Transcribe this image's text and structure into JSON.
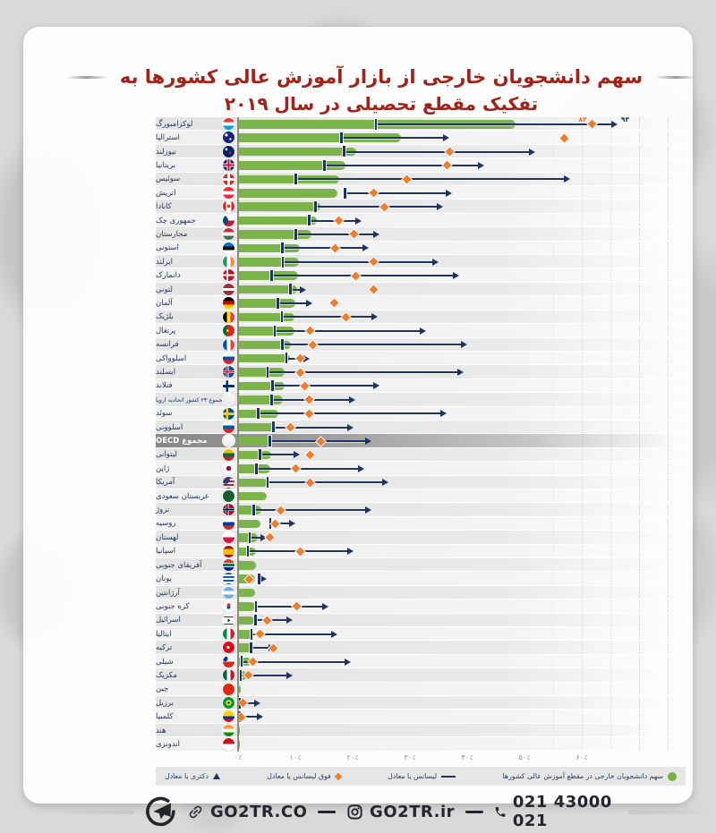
{
  "title": {
    "line1": "سهم دانشجویان خارجی از بازار آموزش عالی کشورها به",
    "line2": "تفکیک مقطع تحصیلی در سال ۲۰۱۹"
  },
  "colors": {
    "title_red": "#a02218",
    "bar_green": "#7ab44b",
    "marker_navy": "#203462",
    "marker_orange": "#ee7d2e",
    "highlight_row_gray": "#9d9d9d"
  },
  "axis": {
    "tick_labels": [
      "۰٪",
      "۱۰٪",
      "۲۰٪",
      "۳۰٪",
      "۴۰٪",
      "۵۰٪",
      "۶۰٪"
    ],
    "tick_values": [
      0,
      10,
      20,
      30,
      40,
      50,
      60
    ],
    "unit": "%"
  },
  "legend": {
    "total": "سهم دانشجویان خارجی در مقطع آموزش عالی کشورها",
    "bachelor": "لیسانس یا معادل",
    "master": "فوق لیسانس یا معادل",
    "doctoral": "دکتری یا معادل"
  },
  "footer": {
    "website": "GO2TR.CO",
    "instagram": "GO2TR.ir",
    "phone": "021 43000 021"
  },
  "chart_data": {
    "type": "bar",
    "orientation": "horizontal",
    "unit": "percent of students who are international, 2019",
    "xlim": [
      0,
      60
    ],
    "series_meta": {
      "bar": "total tertiary share (green bar)",
      "bachelor": "bachelor or equivalent (navy tick, start of line)",
      "master": "master or equivalent (orange diamond)",
      "doctoral": "doctoral or equivalent (navy arrow, end of line)"
    },
    "countries": [
      {
        "name": "لوکزامبورگ",
        "total": 48.5,
        "bachelor": 24,
        "master": 82,
        "doctoral": 93,
        "master_label": "۸۲",
        "doctoral_label": "۹۳",
        "flag": "linear-gradient(180deg,#ef3340 33%,#ffffff 33% 66%,#00a2e1 66%)"
      },
      {
        "name": "استرالیا",
        "total": 28.5,
        "bachelor": 18,
        "master": 57,
        "doctoral": 36,
        "flag": "radial-gradient(circle at 30% 30%,#ffffff 12%,rgba(255,255,255,0) 14%),radial-gradient(circle at 65% 65%,#ffffff 9%,rgba(255,255,255,0) 11%),linear-gradient(#1b237e,#1b237e)"
      },
      {
        "name": "نیوزلند",
        "total": 20.6,
        "bachelor": 18.5,
        "master": 37,
        "doctoral": 51,
        "flag": "radial-gradient(circle at 62% 60%,#cc142b 12%,rgba(204,20,43,0) 14%),radial-gradient(circle at 30% 30%,#ffffff 10%,rgba(255,255,255,0) 12%),linear-gradient(#012169,#012169)"
      },
      {
        "name": "بریتانیا",
        "total": 18.8,
        "bachelor": 15,
        "master": 36.5,
        "doctoral": 42,
        "flag": "linear-gradient(0deg,rgba(0,0,0,0) 44%,#c8102e 44% 56%,rgba(0,0,0,0) 56%),linear-gradient(90deg,rgba(0,0,0,0) 44%,#c8102e 44% 56%,rgba(0,0,0,0) 56%),linear-gradient(0deg,rgba(0,0,0,0) 34%,#ffffff 34% 66%,rgba(0,0,0,0) 66%),linear-gradient(90deg,rgba(0,0,0,0) 34%,#ffffff 34% 66%,rgba(0,0,0,0) 66%),linear-gradient(#012169,#012169)"
      },
      {
        "name": "سوئیس",
        "total": 17.6,
        "bachelor": 10,
        "master": 29.5,
        "doctoral": 57,
        "flag": "linear-gradient(0deg,rgba(0,0,0,0) 40%,#ffffff 40% 60%,rgba(0,0,0,0) 60%),linear-gradient(90deg,rgba(0,0,0,0) 40%,#ffffff 40% 60%,rgba(0,0,0,0) 60%),linear-gradient(#da291c,#da291c)"
      },
      {
        "name": "اتریش",
        "total": 17.3,
        "bachelor": 18.6,
        "master": 23.7,
        "doctoral": 36.4,
        "flag": "linear-gradient(180deg,#ed2939 33%,#ffffff 33% 66%,#ed2939 66%)"
      },
      {
        "name": "کانادا",
        "total": 14.3,
        "bachelor": 13.5,
        "master": 25.5,
        "doctoral": 34.8,
        "flag": "radial-gradient(circle at 50% 50%,#d52b1e 18%,rgba(213,43,30,0) 20%),linear-gradient(90deg,#d52b1e 28%,#ffffff 28% 72%,#d52b1e 72%)"
      },
      {
        "name": "جمهوری چک",
        "total": 13.8,
        "bachelor": 12.4,
        "master": 17.6,
        "doctoral": 20.7,
        "flag": "radial-gradient(circle at 0% 50%,#11457e 40%,rgba(17,69,126,0) 42%),linear-gradient(180deg,#ffffff 50%,#d7141a 50%)"
      },
      {
        "name": "مجارستان",
        "total": 12.8,
        "bachelor": 10,
        "master": 20.3,
        "doctoral": 23.8,
        "flag": "linear-gradient(180deg,#cd2a3e 33%,#ffffff 33% 66%,#436f4d 66%)"
      },
      {
        "name": "استونی",
        "total": 10.8,
        "bachelor": 7.7,
        "master": 16.9,
        "doctoral": 21.8,
        "flag": "linear-gradient(180deg,#0072ce 33%,#000000 33% 66%,#ffffff 66%)"
      },
      {
        "name": "ایرلند",
        "total": 10.7,
        "bachelor": 7.8,
        "master": 23.6,
        "doctoral": 34.1,
        "flag": "linear-gradient(90deg,#169b62 33%,#ffffff 33% 66%,#ff883e 66%)"
      },
      {
        "name": "دانمارک",
        "total": 10.5,
        "bachelor": 5.8,
        "master": 20.6,
        "doctoral": 37.6,
        "flag": "linear-gradient(0deg,rgba(0,0,0,0) 42%,#ffffff 42% 58%,rgba(0,0,0,0) 58%),linear-gradient(90deg,rgba(0,0,0,0) 30%,#ffffff 30% 46%,rgba(0,0,0,0) 46%),linear-gradient(#c8102e,#c8102e)"
      },
      {
        "name": "لتونی",
        "total": 10.3,
        "bachelor": 9.1,
        "master": 23.6,
        "doctoral": 10.9,
        "flag": "linear-gradient(180deg,#9e3039 38%,#ffffff 38% 62%,#9e3039 62%)"
      },
      {
        "name": "آلمان",
        "total": 10.0,
        "bachelor": 6.9,
        "master": 16.8,
        "doctoral": 12.1,
        "flag": "linear-gradient(180deg,#000000 33%,#dd0000 33% 66%,#ffce00 66%)"
      },
      {
        "name": "بلژیک",
        "total": 9.9,
        "bachelor": 7.6,
        "master": 18.9,
        "doctoral": 23.5,
        "flag": "linear-gradient(90deg,#000000 33%,#fdda24 33% 66%,#ef3340 66%)"
      },
      {
        "name": "پرتغال",
        "total": 9.8,
        "bachelor": 6.4,
        "master": 12.6,
        "doctoral": 31.8,
        "flag": "radial-gradient(circle at 40% 50%,#ffe900 12%,rgba(255,233,0,0) 14%),linear-gradient(90deg,#046a38 40%,#da291c 40%)"
      },
      {
        "name": "فرانسه",
        "total": 9.2,
        "bachelor": 7.7,
        "master": 13.0,
        "doctoral": 39.0,
        "flag": "linear-gradient(90deg,#0055a4 33%,#ffffff 33% 66%,#ef4135 66%)"
      },
      {
        "name": "اسلوواکی",
        "total": 9.0,
        "bachelor": 8.4,
        "master": 10.8,
        "doctoral": 11.5,
        "flag": "linear-gradient(180deg,#ffffff 33%,#0b4ea2 33% 66%,#ee1c25 66%)"
      },
      {
        "name": "ایسلند",
        "total": 8.2,
        "bachelor": 5.1,
        "master": 10.9,
        "doctoral": 38.4,
        "flag": "linear-gradient(0deg,rgba(0,0,0,0) 44%,#dc1e35 44% 56%,rgba(0,0,0,0) 56%),linear-gradient(90deg,rgba(0,0,0,0) 32%,#dc1e35 32% 44%,rgba(0,0,0,0) 44%),linear-gradient(0deg,rgba(0,0,0,0) 38%,#ffffff 38% 62%,rgba(0,0,0,0) 62%),linear-gradient(90deg,rgba(0,0,0,0) 26%,#ffffff 26% 50%,rgba(0,0,0,0) 50%),linear-gradient(#02529c,#02529c)"
      },
      {
        "name": "فنلاند",
        "total": 8.1,
        "bachelor": 6.0,
        "master": 11.7,
        "doctoral": 23.7,
        "flag": "linear-gradient(0deg,rgba(0,0,0,0) 40%,#002f6c 40% 60%,rgba(0,0,0,0) 60%),linear-gradient(90deg,rgba(0,0,0,0) 28%,#002f6c 28% 48%,rgba(0,0,0,0) 48%),linear-gradient(#ffffff,#ffffff)"
      },
      {
        "name": "مجموع ۲۳ کشور اتحادیه اروپا",
        "total": 7.8,
        "bachelor": 5.8,
        "master": 12.4,
        "doctoral": 19.5,
        "flag": "linear-gradient(#f7f7f7,#e8e8e8)"
      },
      {
        "name": "سوئد",
        "total": 7.1,
        "bachelor": 3.5,
        "master": 12.4,
        "doctoral": 35.5,
        "flag": "linear-gradient(0deg,rgba(0,0,0,0) 40%,#fecb00 40% 60%,rgba(0,0,0,0) 60%),linear-gradient(90deg,rgba(0,0,0,0) 28%,#fecb00 28% 48%,rgba(0,0,0,0) 48%),linear-gradient(#005293,#005293)"
      },
      {
        "name": "اسلوونی",
        "total": 6.5,
        "bachelor": 6.1,
        "master": 9.1,
        "doctoral": 19.2,
        "flag": "linear-gradient(180deg,#ffffff 33%,#005da4 33% 66%,#ed1c24 66%)"
      },
      {
        "name": "مجموع OECD",
        "total": 6.0,
        "bachelor": 5.5,
        "master": 14.5,
        "doctoral": 22.3,
        "highlight": true,
        "flag": "linear-gradient(#fdfdfd,#ececec)"
      },
      {
        "name": "لیتوانی",
        "total": 5.8,
        "bachelor": 3.8,
        "master": 12.6,
        "doctoral": 9.8,
        "flag": "linear-gradient(180deg,#fdb913 33%,#006a44 33% 66%,#c1272d 66%)"
      },
      {
        "name": "ژاپن",
        "total": 5.6,
        "bachelor": 3.2,
        "master": 10.0,
        "doctoral": 21.1,
        "flag": "radial-gradient(circle,#bc002d 28%,rgba(188,0,45,0) 30%),linear-gradient(#ffffff,#ffffff)"
      },
      {
        "name": "آمریکا",
        "total": 5.2,
        "bachelor": 5.1,
        "master": 12.6,
        "doctoral": 25.3,
        "flag": "radial-gradient(circle at 25% 25%,#3c3b6e 32%,rgba(60,59,110,0) 34%),repeating-linear-gradient(180deg,#b22234 0 2px,#ffffff 2px 4px)"
      },
      {
        "name": "عربستان سعودی",
        "total": 5.0,
        "bachelor": null,
        "master": null,
        "doctoral": null,
        "flag": "linear-gradient(#165d31,#165d31)"
      },
      {
        "name": "نروژ",
        "total": 4.0,
        "bachelor": 2.7,
        "master": 7.4,
        "doctoral": 22.3,
        "flag": "linear-gradient(0deg,rgba(0,0,0,0) 44%,#00205b 44% 56%,rgba(0,0,0,0) 56%),linear-gradient(90deg,rgba(0,0,0,0) 32%,#00205b 32% 44%,rgba(0,0,0,0) 44%),linear-gradient(0deg,rgba(0,0,0,0) 38%,#ffffff 38% 62%,rgba(0,0,0,0) 62%),linear-gradient(90deg,rgba(0,0,0,0) 26%,#ffffff 26% 50%,rgba(0,0,0,0) 50%),linear-gradient(#ba0c2f,#ba0c2f)"
      },
      {
        "name": "روسیه",
        "total": 3.9,
        "bachelor": 5.6,
        "master": 6.5,
        "doctoral": 9.1,
        "flag": "linear-gradient(180deg,#ffffff 33%,#0039a6 33% 66%,#d52b1e 66%)"
      },
      {
        "name": "لهستان",
        "total": 3.4,
        "bachelor": 2.0,
        "master": 5.5,
        "doctoral": 4.0,
        "flag": "linear-gradient(180deg,#ffffff 50%,#dc143c 50%)"
      },
      {
        "name": "اسپانیا",
        "total": 3.2,
        "bachelor": 1.7,
        "master": 10.8,
        "doctoral": 19.2,
        "flag": "linear-gradient(180deg,#aa151b 25%,#f1bf00 25% 75%,#aa151b 75%)"
      },
      {
        "name": "آفریقای جنوبی",
        "total": 3.1,
        "bachelor": null,
        "master": null,
        "doctoral": null,
        "flag": "linear-gradient(180deg,#e03c31 30%,#ffffff 30% 38%,#007749 38% 62%,#ffffff 62% 70%,#001489 70%)"
      },
      {
        "name": "یونان",
        "total": 3.0,
        "bachelor": 3.6,
        "master": 2.0,
        "doctoral": 4.0,
        "flag": "repeating-linear-gradient(180deg,#0d5eaf 0 2px,#ffffff 2px 4px)"
      },
      {
        "name": "آرژانتین",
        "total": 3.0,
        "bachelor": null,
        "master": null,
        "doctoral": null,
        "flag": "linear-gradient(180deg,#74acdf 33%,#ffffff 33% 66%,#74acdf 66%)"
      },
      {
        "name": "کره جنوبی",
        "total": 2.9,
        "bachelor": 3.1,
        "master": 10.3,
        "doctoral": 14.8,
        "flag": "radial-gradient(circle at 50% 40%,#cd2e3a 18%,rgba(205,46,58,0) 20%),radial-gradient(circle at 50% 60%,#0047a0 18%,rgba(0,71,160,0) 20%),linear-gradient(#ffffff,#ffffff)"
      },
      {
        "name": "اسرائیل",
        "total": 2.8,
        "bachelor": 3.0,
        "master": 5.1,
        "doctoral": 8.6,
        "flag": "radial-gradient(circle,#0038b8 14%,rgba(0,56,184,0) 16%),linear-gradient(180deg,rgba(0,0,0,0) 14%,#0038b8 14% 24%,rgba(0,0,0,0) 24% 76%,#0038b8 76% 86%,rgba(0,0,0,0) 86%),linear-gradient(#ffffff,#ffffff)"
      },
      {
        "name": "ایتالیا",
        "total": 2.7,
        "bachelor": 2.3,
        "master": 3.9,
        "doctoral": 16.4,
        "flag": "linear-gradient(90deg,#008c45 33%,#ffffff 33% 66%,#cd212a 66%)"
      },
      {
        "name": "ترکیه",
        "total": 2.6,
        "bachelor": 2.2,
        "master": 6.2,
        "doctoral": 5.5,
        "flag": "radial-gradient(circle at 45% 50%,#ffffff 16%,rgba(255,255,255,0) 18%),linear-gradient(#e30a17,#e30a17)"
      },
      {
        "name": "شیلی",
        "total": 2.3,
        "bachelor": 0.6,
        "master": 2.5,
        "doctoral": 18.8,
        "flag": "radial-gradient(circle at 20% 25%,#0039a6 20%,rgba(0,57,166,0) 22%),linear-gradient(180deg,#ffffff 50%,#d52b1e 50%)"
      },
      {
        "name": "مکزیک",
        "total": 1.5,
        "bachelor": 0.4,
        "master": 1.8,
        "doctoral": 8.6,
        "flag": "linear-gradient(90deg,#006341 33%,#ffffff 33% 66%,#ce1126 66%)"
      },
      {
        "name": "چین",
        "total": 0.5,
        "bachelor": null,
        "master": null,
        "doctoral": null,
        "flag": "linear-gradient(#de2910,#de2910)"
      },
      {
        "name": "برزیل",
        "total": 0.6,
        "bachelor": 0.3,
        "master": 0.8,
        "doctoral": 3.0,
        "flag": "radial-gradient(circle,#002776 13%,rgba(0,39,118,0) 15%),radial-gradient(circle,#ffdf00 32%,rgba(255,223,0,0) 34%),linear-gradient(#009739,#009739)"
      },
      {
        "name": "کلمبیا",
        "total": 0.6,
        "bachelor": 0.3,
        "master": 0.6,
        "doctoral": 3.5,
        "flag": "linear-gradient(180deg,#fcd116 50%,#003893 50% 75%,#ce1126 75%)"
      },
      {
        "name": "هند",
        "total": 0.3,
        "bachelor": null,
        "master": null,
        "doctoral": null,
        "flag": "linear-gradient(180deg,#ff9933 33%,#ffffff 33% 66%,#138808 66%)"
      },
      {
        "name": "اندونزی",
        "total": 0.3,
        "bachelor": null,
        "master": null,
        "doctoral": null,
        "flag": "linear-gradient(180deg,#ce1126 50%,#ffffff 50%)"
      }
    ]
  }
}
